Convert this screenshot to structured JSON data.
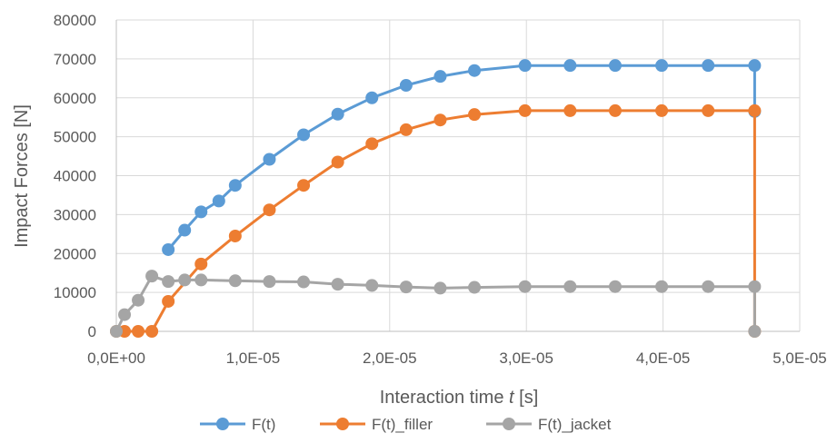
{
  "chart_data": {
    "type": "line",
    "title": "",
    "xlabel": "Interaction time ",
    "xlabel_italic": "t",
    "xlabel_unit": " [s]",
    "ylabel": "Impact Forces [N]",
    "xlim": [
      0,
      5e-05
    ],
    "ylim": [
      0,
      80000
    ],
    "x_ticks": [
      0,
      1e-05,
      2e-05,
      3e-05,
      4e-05,
      5e-05
    ],
    "x_tick_labels": [
      "0,0E+00",
      "1,0E-05",
      "2,0E-05",
      "3,0E-05",
      "4,0E-05",
      "5,0E-05"
    ],
    "y_ticks": [
      0,
      10000,
      20000,
      30000,
      40000,
      50000,
      60000,
      70000,
      80000
    ],
    "y_tick_labels": [
      "0",
      "10000",
      "20000",
      "30000",
      "40000",
      "50000",
      "60000",
      "70000",
      "80000"
    ],
    "grid": true,
    "legend_position": "bottom",
    "series": [
      {
        "name": "F(t)",
        "color": "#5B9BD5",
        "x": [
          3.8e-06,
          5e-06,
          6.2e-06,
          7.5e-06,
          8.7e-06,
          1.12e-05,
          1.37e-05,
          1.62e-05,
          1.87e-05,
          2.12e-05,
          2.37e-05,
          2.62e-05,
          2.99e-05,
          3.32e-05,
          3.65e-05,
          3.99e-05,
          4.33e-05,
          4.67e-05,
          4.67e-05
        ],
        "y": [
          21000,
          26000,
          30700,
          33500,
          37500,
          44200,
          50500,
          55800,
          60000,
          63200,
          65500,
          67000,
          68300,
          68300,
          68300,
          68300,
          68300,
          68300,
          56500
        ]
      },
      {
        "name": "F(t)_filler",
        "color": "#ED7D31",
        "x": [
          0,
          6e-07,
          1.6e-06,
          2.6e-06,
          3.8e-06,
          6.2e-06,
          8.7e-06,
          1.12e-05,
          1.37e-05,
          1.62e-05,
          1.87e-05,
          2.12e-05,
          2.37e-05,
          2.62e-05,
          2.99e-05,
          3.32e-05,
          3.65e-05,
          3.99e-05,
          4.33e-05,
          4.67e-05,
          4.67e-05
        ],
        "y": [
          0,
          0,
          0,
          0,
          7700,
          17300,
          24500,
          31200,
          37500,
          43500,
          48200,
          51800,
          54300,
          55700,
          56700,
          56700,
          56700,
          56700,
          56700,
          56700,
          0
        ]
      },
      {
        "name": "F(t)_jacket",
        "color": "#A5A5A5",
        "x": [
          0,
          6e-07,
          1.6e-06,
          2.6e-06,
          3.8e-06,
          5e-06,
          6.2e-06,
          8.7e-06,
          1.12e-05,
          1.37e-05,
          1.62e-05,
          1.87e-05,
          2.12e-05,
          2.37e-05,
          2.62e-05,
          2.99e-05,
          3.32e-05,
          3.65e-05,
          3.99e-05,
          4.33e-05,
          4.67e-05,
          4.67e-05
        ],
        "y": [
          0,
          4300,
          8000,
          14200,
          12800,
          13200,
          13200,
          13000,
          12800,
          12700,
          12100,
          11800,
          11400,
          11100,
          11300,
          11500,
          11500,
          11500,
          11500,
          11500,
          11500,
          0
        ]
      }
    ]
  }
}
